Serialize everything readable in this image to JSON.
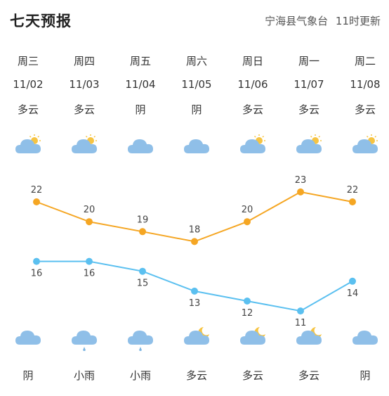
{
  "header": {
    "title": "七天预报",
    "source": "宁海县气象台",
    "update": "11时更新"
  },
  "colors": {
    "high_line": "#f5a623",
    "low_line": "#5bc0f0",
    "cloud": "#8fbfe8",
    "sun": "#f6c443",
    "moon": "#f6c443",
    "rain": "#7ab3e0"
  },
  "days": [
    {
      "weekday": "周三",
      "date": "11/02",
      "day_weather": "多云",
      "day_icon": "partly-cloudy-day-icon",
      "night_icon": "cloud-icon",
      "night_weather": "阴"
    },
    {
      "weekday": "周四",
      "date": "11/03",
      "day_weather": "多云",
      "day_icon": "partly-cloudy-day-icon",
      "night_icon": "rain-icon",
      "night_weather": "小雨"
    },
    {
      "weekday": "周五",
      "date": "11/04",
      "day_weather": "阴",
      "day_icon": "cloud-icon",
      "night_icon": "rain-icon",
      "night_weather": "小雨"
    },
    {
      "weekday": "周六",
      "date": "11/05",
      "day_weather": "阴",
      "day_icon": "cloud-icon",
      "night_icon": "partly-cloudy-night-icon",
      "night_weather": "多云"
    },
    {
      "weekday": "周日",
      "date": "11/06",
      "day_weather": "多云",
      "day_icon": "partly-cloudy-day-icon",
      "night_icon": "partly-cloudy-night-icon",
      "night_weather": "多云"
    },
    {
      "weekday": "周一",
      "date": "11/07",
      "day_weather": "多云",
      "day_icon": "partly-cloudy-day-icon",
      "night_icon": "partly-cloudy-night-icon",
      "night_weather": "多云"
    },
    {
      "weekday": "周二",
      "date": "11/08",
      "day_weather": "多云",
      "day_icon": "partly-cloudy-day-icon",
      "night_icon": "cloud-icon",
      "night_weather": "阴"
    }
  ],
  "chart_data": {
    "type": "line",
    "categories": [
      "11/02",
      "11/03",
      "11/04",
      "11/05",
      "11/06",
      "11/07",
      "11/08"
    ],
    "series": [
      {
        "values": [
          22,
          20,
          19,
          18,
          20,
          23,
          22
        ]
      },
      {
        "values": [
          16,
          16,
          15,
          13,
          12,
          11,
          14
        ]
      }
    ]
  }
}
